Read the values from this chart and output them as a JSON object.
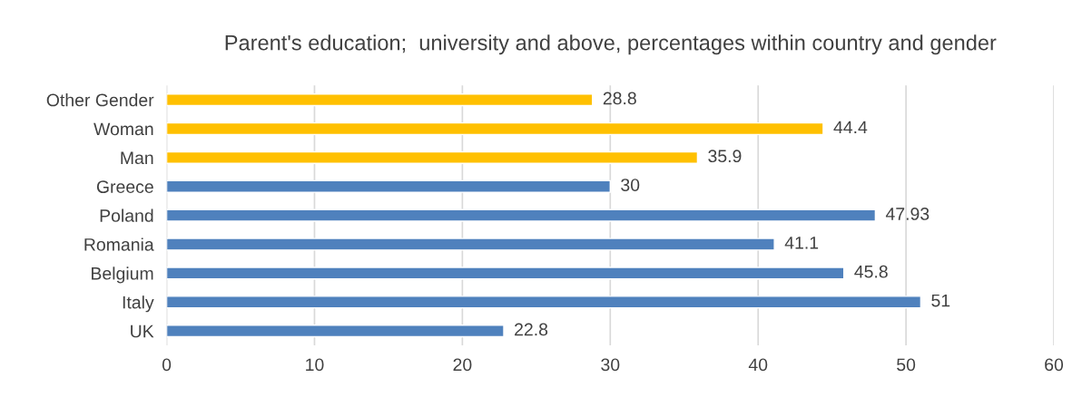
{
  "chart_data": {
    "type": "bar",
    "orientation": "horizontal",
    "title": "Parent's education;  university and above, percentages within country and gender",
    "categories": [
      "Other Gender",
      "Woman",
      "Man",
      "Greece",
      "Poland",
      "Romania",
      "Belgium",
      "Italy",
      "UK"
    ],
    "values": [
      28.8,
      44.4,
      35.9,
      30,
      47.93,
      41.1,
      45.8,
      51,
      22.8
    ],
    "colors": [
      "#ffc000",
      "#ffc000",
      "#ffc000",
      "#4f81bd",
      "#4f81bd",
      "#4f81bd",
      "#4f81bd",
      "#4f81bd",
      "#4f81bd"
    ],
    "xlim": [
      0,
      60
    ],
    "xticks": [
      0,
      10,
      20,
      30,
      40,
      50,
      60
    ],
    "grid": "x",
    "data_labels": true
  }
}
